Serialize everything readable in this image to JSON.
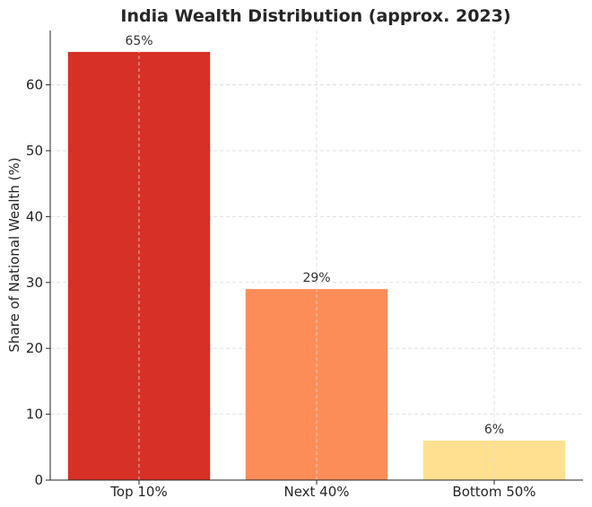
{
  "chart_data": {
    "type": "bar",
    "title": "India Wealth Distribution (approx. 2023)",
    "xlabel": "",
    "ylabel": "Share of National Wealth (%)",
    "categories": [
      "Top 10%",
      "Next 40%",
      "Bottom 50%"
    ],
    "values": [
      65,
      29,
      6
    ],
    "data_labels": [
      "65%",
      "29%",
      "6%"
    ],
    "colors": [
      "#d73027",
      "#fc8d59",
      "#fee090"
    ],
    "yticks": [
      0,
      10,
      20,
      30,
      40,
      50,
      60
    ],
    "ytick_labels": [
      "0",
      "10",
      "20",
      "30",
      "40",
      "50",
      "60"
    ],
    "ylim": [
      0,
      68.25
    ],
    "grid": true,
    "legend": "none"
  }
}
